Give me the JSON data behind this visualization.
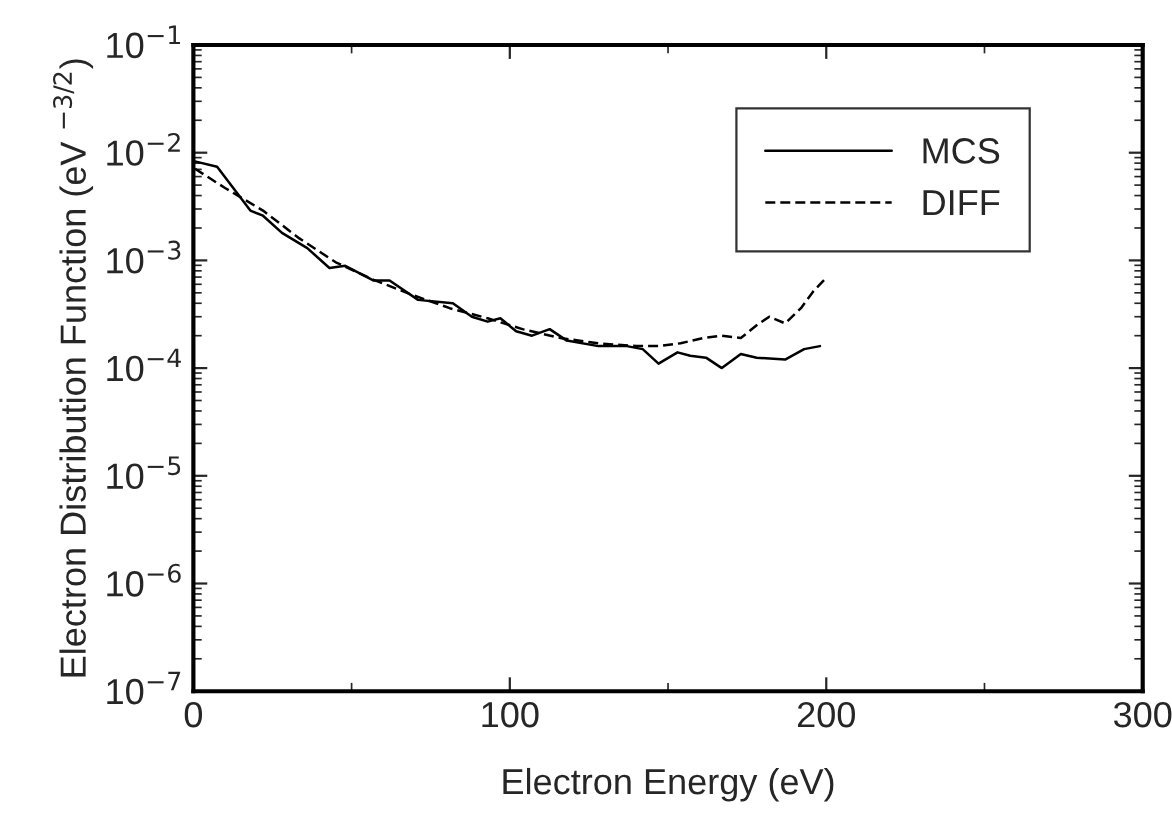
{
  "chart_data": {
    "type": "line",
    "xlabel": "Electron Energy (eV)",
    "ylabel": "Electron Distribution Function (eV $^{−3/2}$)",
    "log": "y",
    "xlim": [
      0,
      300
    ],
    "xticks": [
      0,
      100,
      200,
      300
    ],
    "ylim": [
      1e-07,
      0.1
    ],
    "yticks": [
      {
        "value": 1e-07,
        "label": "10$^{−7}$"
      },
      {
        "value": 1e-06,
        "label": "10$^{−6}$"
      },
      {
        "value": 1e-05,
        "label": "10$^{−5}$"
      },
      {
        "value": 0.0001,
        "label": "10$^{−4}$"
      },
      {
        "value": 0.001,
        "label": "10$^{−3}$"
      },
      {
        "value": 0.01,
        "label": "10$^{−2}$"
      },
      {
        "value": 0.1,
        "label": "10$^{−1}$"
      }
    ],
    "grid": false,
    "legend": "top right",
    "marker": "none",
    "series": [
      {
        "name": "MCS",
        "color": "#000000",
        "line_style": "solid",
        "x": [
          0.5,
          7.5,
          18,
          22,
          28,
          36,
          43,
          48,
          57,
          62,
          71,
          82,
          88,
          93,
          97,
          102,
          107,
          112.6,
          118,
          128,
          137,
          142,
          147,
          153,
          157,
          162,
          167,
          173,
          178,
          187,
          193,
          198
        ],
        "values": [
          0.0083,
          0.0074,
          0.0029,
          0.0026,
          0.0018,
          0.0013,
          0.00085,
          0.00089,
          0.00065,
          0.00065,
          0.00043,
          0.0004,
          0.0003,
          0.00027,
          0.00029,
          0.00022,
          0.0002,
          0.00023,
          0.00018,
          0.00016,
          0.00016,
          0.00015,
          0.00011,
          0.00014,
          0.00013,
          0.000125,
          0.0001,
          0.000135,
          0.000125,
          0.00012,
          0.00015,
          0.00016
        ]
      },
      {
        "name": "DIFF",
        "color": "#000000",
        "line_style": "dashed",
        "x": [
          0.5,
          10,
          22,
          33.5,
          45,
          57,
          69,
          81,
          93,
          104,
          116,
          128,
          140,
          147,
          154,
          161,
          167,
          173,
          178,
          182,
          187,
          192,
          196,
          200
        ],
        "values": [
          0.0071,
          0.0047,
          0.0029,
          0.0016,
          0.00096,
          0.00066,
          0.00048,
          0.00036,
          0.00029,
          0.00023,
          0.00019,
          0.00017,
          0.00016,
          0.00016,
          0.00017,
          0.00019,
          0.0002,
          0.00019,
          0.00025,
          0.0003,
          0.00026,
          0.00036,
          0.00052,
          0.00069
        ]
      }
    ]
  }
}
